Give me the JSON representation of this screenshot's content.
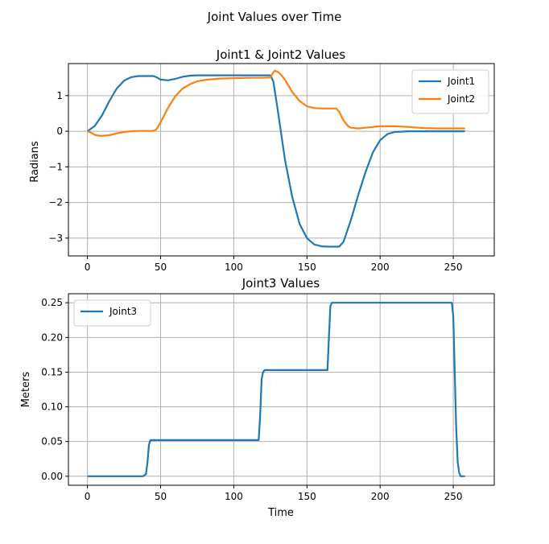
{
  "figure": {
    "title": "Joint Values over Time"
  },
  "colors": {
    "joint1": "#1f77b4",
    "joint2": "#ff7f0e",
    "joint3": "#1f77b4",
    "grid": "#b0b0b0"
  },
  "chart_data": [
    {
      "type": "line",
      "title": "Joint1 & Joint2 Values",
      "xlabel": "",
      "ylabel": "Radians",
      "xlim": [
        -13,
        278
      ],
      "ylim": [
        -3.5,
        1.9
      ],
      "xticks": [
        0,
        50,
        100,
        150,
        200,
        250
      ],
      "yticks": [
        -3,
        -2,
        -1,
        0,
        1
      ],
      "ytick_labels": [
        "−3",
        "−2",
        "−1",
        "0",
        "1"
      ],
      "grid": true,
      "legend": "upper right",
      "series": [
        {
          "name": "Joint1",
          "color": "#1f77b4",
          "x": [
            0,
            5,
            10,
            15,
            20,
            25,
            30,
            35,
            40,
            45,
            47,
            50,
            55,
            60,
            65,
            70,
            75,
            80,
            90,
            100,
            110,
            120,
            125,
            127,
            130,
            135,
            140,
            145,
            150,
            155,
            160,
            165,
            170,
            172,
            175,
            180,
            185,
            190,
            195,
            200,
            205,
            210,
            220,
            230,
            240,
            250,
            258
          ],
          "y": [
            0,
            0.15,
            0.45,
            0.85,
            1.2,
            1.42,
            1.52,
            1.55,
            1.55,
            1.55,
            1.52,
            1.45,
            1.43,
            1.47,
            1.53,
            1.56,
            1.57,
            1.57,
            1.57,
            1.57,
            1.57,
            1.57,
            1.57,
            1.4,
            0.6,
            -0.8,
            -1.85,
            -2.6,
            -3.0,
            -3.18,
            -3.23,
            -3.24,
            -3.24,
            -3.24,
            -3.1,
            -2.5,
            -1.8,
            -1.15,
            -0.6,
            -0.25,
            -0.08,
            -0.02,
            0,
            0,
            0,
            0,
            0
          ]
        },
        {
          "name": "Joint2",
          "color": "#ff7f0e",
          "x": [
            0,
            3,
            5,
            8,
            10,
            15,
            20,
            25,
            30,
            35,
            40,
            45,
            47,
            50,
            55,
            60,
            65,
            70,
            75,
            80,
            90,
            100,
            110,
            120,
            125,
            127,
            128,
            130,
            132,
            135,
            140,
            145,
            150,
            155,
            160,
            165,
            170,
            172,
            175,
            178,
            180,
            185,
            190,
            200,
            210,
            220,
            230,
            240,
            250,
            258
          ],
          "y": [
            0,
            -0.05,
            -0.1,
            -0.13,
            -0.13,
            -0.11,
            -0.06,
            -0.02,
            0,
            0.01,
            0.01,
            0.01,
            0.05,
            0.25,
            0.65,
            0.98,
            1.2,
            1.32,
            1.4,
            1.44,
            1.48,
            1.49,
            1.5,
            1.5,
            1.51,
            1.65,
            1.7,
            1.67,
            1.6,
            1.45,
            1.1,
            0.85,
            0.7,
            0.65,
            0.64,
            0.64,
            0.64,
            0.55,
            0.3,
            0.15,
            0.1,
            0.08,
            0.1,
            0.14,
            0.14,
            0.12,
            0.09,
            0.08,
            0.08,
            0.08
          ]
        }
      ]
    },
    {
      "type": "line",
      "title": "Joint3 Values",
      "xlabel": "Time",
      "ylabel": "Meters",
      "xlim": [
        -13,
        278
      ],
      "ylim": [
        -0.013,
        0.263
      ],
      "xticks": [
        0,
        50,
        100,
        150,
        200,
        250
      ],
      "yticks": [
        0,
        0.05,
        0.1,
        0.15,
        0.2,
        0.25
      ],
      "ytick_labels": [
        "0.00",
        "0.05",
        "0.10",
        "0.15",
        "0.20",
        "0.25"
      ],
      "grid": true,
      "legend": "upper left",
      "series": [
        {
          "name": "Joint3",
          "color": "#1f77b4",
          "x": [
            0,
            10,
            20,
            30,
            38,
            40,
            41,
            42,
            43,
            50,
            60,
            80,
            100,
            110,
            117,
            118,
            119,
            120,
            121,
            125,
            140,
            160,
            164,
            165,
            166,
            167,
            170,
            200,
            230,
            249,
            250,
            251,
            252,
            253,
            254,
            255,
            258
          ],
          "y": [
            0,
            0,
            0,
            0,
            0,
            0.003,
            0.02,
            0.045,
            0.052,
            0.052,
            0.052,
            0.052,
            0.052,
            0.052,
            0.052,
            0.085,
            0.14,
            0.15,
            0.153,
            0.153,
            0.153,
            0.153,
            0.153,
            0.2,
            0.245,
            0.25,
            0.25,
            0.25,
            0.25,
            0.25,
            0.23,
            0.15,
            0.07,
            0.02,
            0.005,
            0,
            0
          ]
        }
      ]
    }
  ]
}
